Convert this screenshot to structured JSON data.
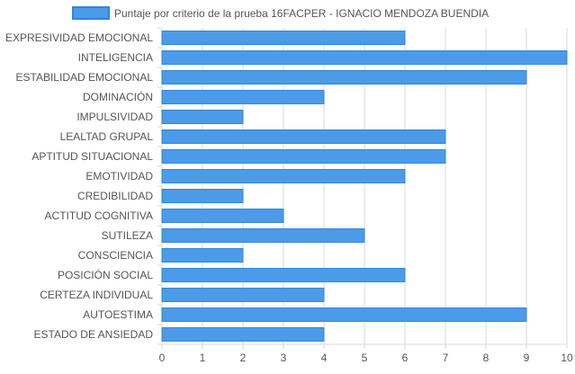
{
  "chart_data": {
    "type": "bar",
    "orientation": "horizontal",
    "title": "",
    "legend": {
      "position": "top",
      "entries": [
        "Puntaje por criterio de la prueba 16FACPER - IGNACIO MENDOZA BUENDIA"
      ]
    },
    "categories": [
      "EXPRESIVIDAD EMOCIONAL",
      "INTELIGENCIA",
      "ESTABILIDAD EMOCIONAL",
      "DOMINACIÓN",
      "IMPULSIVIDAD",
      "LEALTAD GRUPAL",
      "APTITUD SITUACIONAL",
      "EMOTIVIDAD",
      "CREDIBILIDAD",
      "ACTITUD COGNITIVA",
      "SUTILEZA",
      "CONSCIENCIA",
      "POSICIÓN SOCIAL",
      "CERTEZA INDIVIDUAL",
      "AUTOESTIMA",
      "ESTADO DE ANSIEDAD"
    ],
    "series": [
      {
        "name": "Puntaje por criterio de la prueba 16FACPER - IGNACIO MENDOZA BUENDIA",
        "values": [
          6,
          10,
          9,
          4,
          2,
          7,
          7,
          6,
          2,
          3,
          5,
          2,
          6,
          4,
          9,
          4
        ]
      }
    ],
    "xlim": [
      0,
      10
    ],
    "x_ticks": [
      "0",
      "1",
      "2",
      "3",
      "4",
      "5",
      "6",
      "7",
      "8",
      "9",
      "10"
    ],
    "grid": true,
    "colors": {
      "bar_fill": "#4b9be8",
      "bar_stroke": "#2f86e0",
      "grid": "#d9d9d9",
      "text": "#555555"
    }
  }
}
